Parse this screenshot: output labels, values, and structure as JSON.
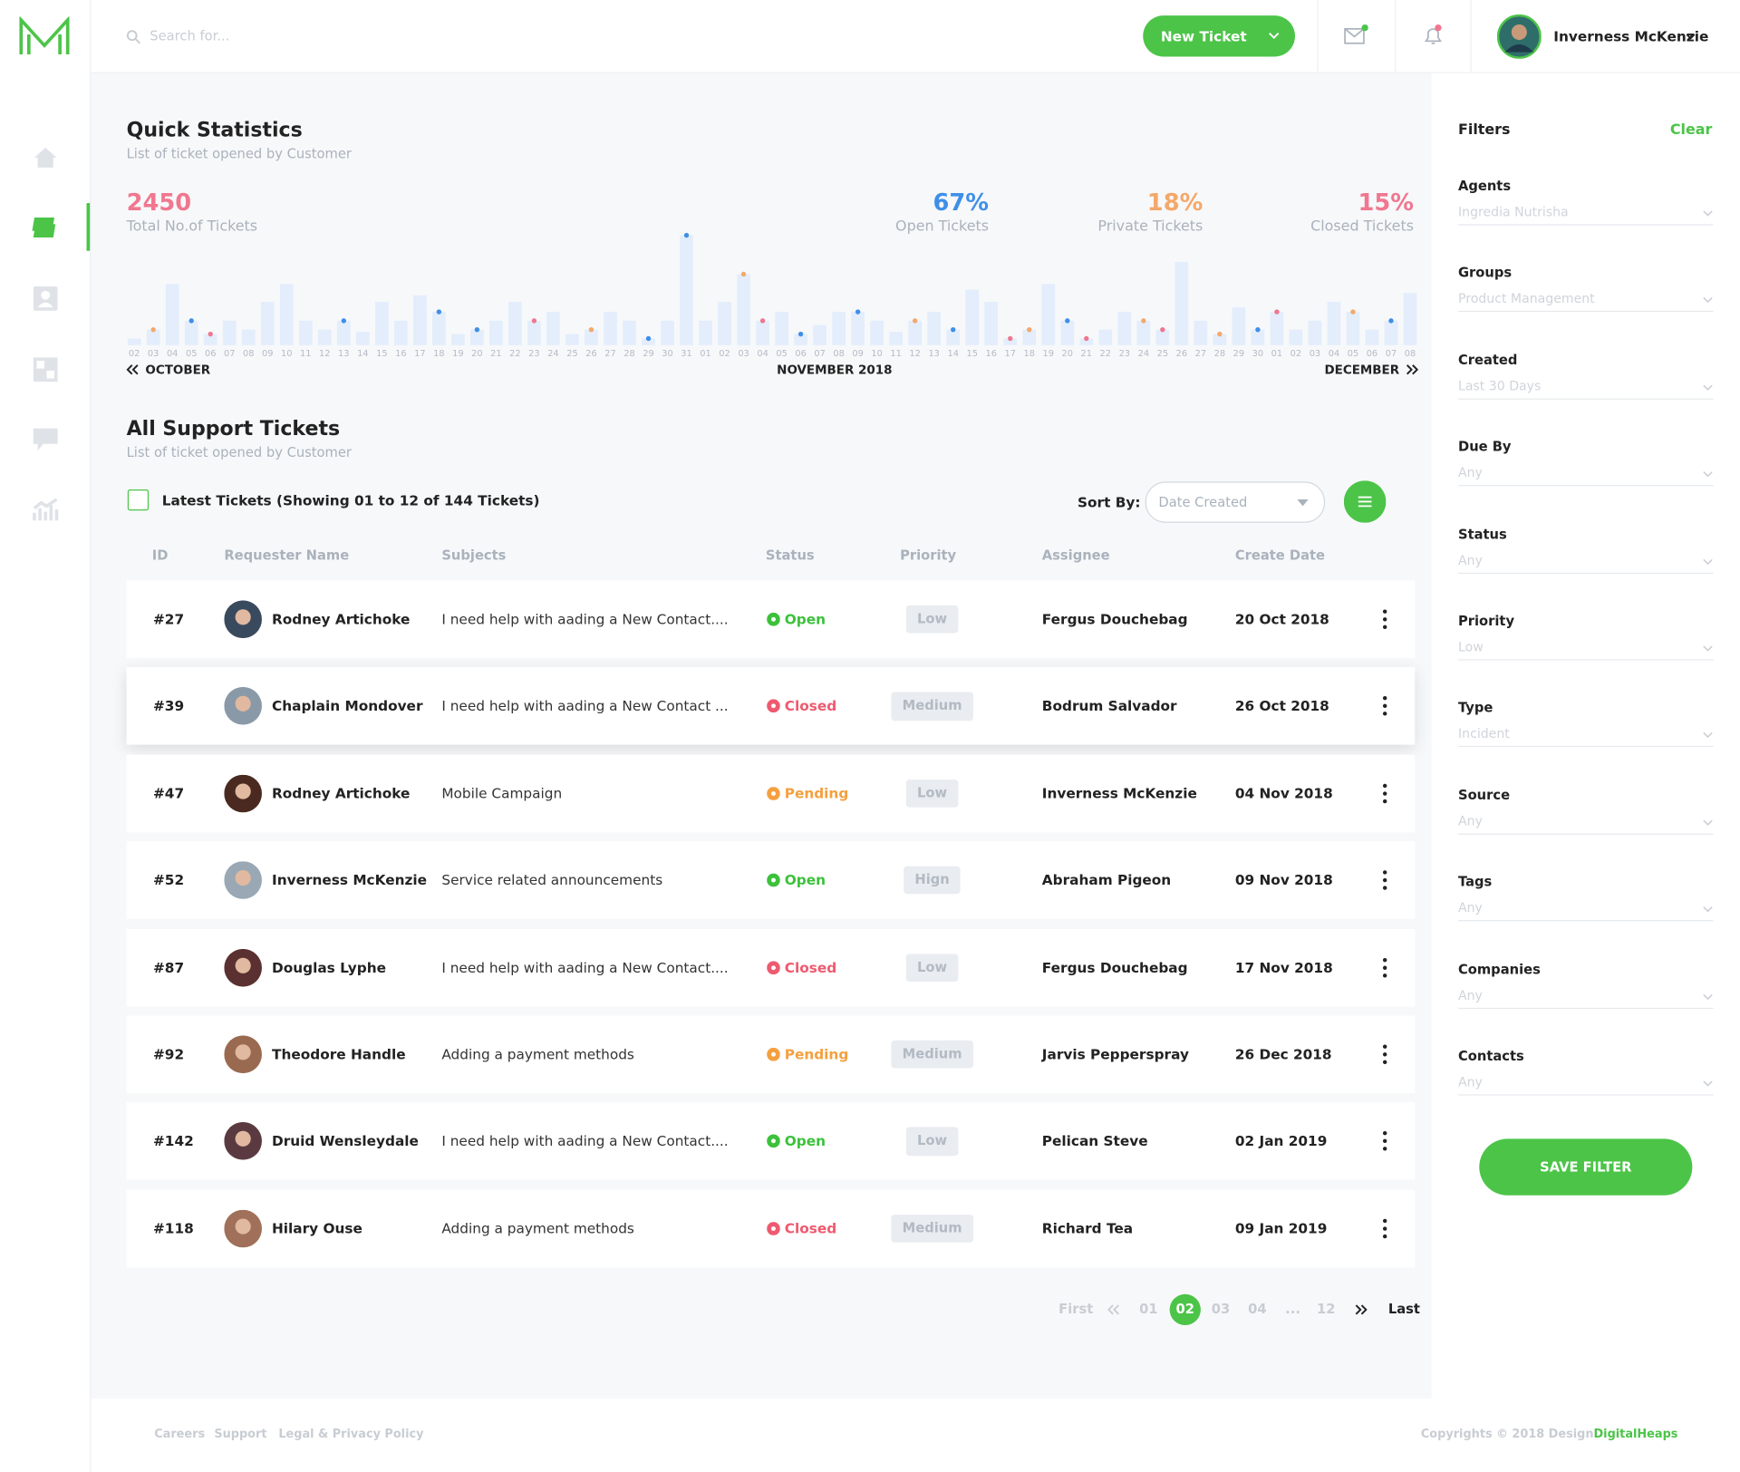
{
  "header": {
    "search_placeholder": "Search for...",
    "new_ticket": "New Ticket",
    "user_name": "Inverness McKenzie"
  },
  "stats": {
    "title": "Quick Statistics",
    "subtitle": "List of ticket opened by Customer",
    "total": {
      "value": "2450",
      "label": "Total No.of Tickets",
      "color": "#f0778f"
    },
    "metrics": [
      {
        "value": "67%",
        "label": "Open Tickets",
        "color": "#3f8fe8"
      },
      {
        "value": "18%",
        "label": "Private Tickets",
        "color": "#f4a86a"
      },
      {
        "value": "15%",
        "label": "Closed Tickets",
        "color": "#f0778f"
      }
    ],
    "chart": {
      "type": "bar",
      "color": "#e3edfc",
      "ylim": [
        0,
        100
      ],
      "categories": [
        "02",
        "03",
        "04",
        "05",
        "06",
        "07",
        "08",
        "09",
        "10",
        "11",
        "12",
        "13",
        "14",
        "15",
        "16",
        "17",
        "18",
        "19",
        "20",
        "21",
        "22",
        "23",
        "24",
        "25",
        "26",
        "27",
        "28",
        "29",
        "30",
        "31",
        "01",
        "02",
        "03",
        "04",
        "05",
        "06",
        "07",
        "08",
        "09",
        "10",
        "11",
        "12",
        "13",
        "14",
        "15",
        "16",
        "17",
        "18",
        "19",
        "20",
        "21",
        "22",
        "23",
        "24",
        "25",
        "26",
        "27",
        "28",
        "29",
        "30",
        "01",
        "02",
        "03",
        "04",
        "05",
        "06",
        "07",
        "08"
      ],
      "values": [
        6,
        14,
        55,
        22,
        10,
        22,
        14,
        39,
        55,
        22,
        14,
        22,
        12,
        39,
        22,
        45,
        30,
        10,
        14,
        22,
        39,
        22,
        30,
        10,
        14,
        30,
        22,
        6,
        22,
        99,
        22,
        39,
        64,
        22,
        30,
        10,
        18,
        30,
        30,
        22,
        12,
        22,
        30,
        14,
        50,
        39,
        6,
        14,
        55,
        22,
        6,
        14,
        30,
        22,
        14,
        75,
        22,
        10,
        34,
        14,
        30,
        14,
        22,
        39,
        30,
        14,
        22,
        47
      ],
      "markers": [
        null,
        "#f4a86a",
        null,
        "#3f8fe8",
        "#f0778f",
        null,
        null,
        null,
        null,
        null,
        null,
        "#3f8fe8",
        null,
        null,
        null,
        null,
        "#3f8fe8",
        null,
        "#3f8fe8",
        null,
        null,
        "#f0778f",
        null,
        null,
        "#f4a86a",
        null,
        null,
        "#3f8fe8",
        null,
        "#3f8fe8",
        null,
        null,
        "#f4a86a",
        "#f0778f",
        null,
        "#3f8fe8",
        null,
        null,
        "#3f8fe8",
        null,
        null,
        "#f4a86a",
        null,
        "#3f8fe8",
        null,
        null,
        "#f0778f",
        "#f4a86a",
        null,
        "#3f8fe8",
        "#f0778f",
        null,
        null,
        "#f4a86a",
        "#f0778f",
        null,
        null,
        "#f4a86a",
        null,
        "#3f8fe8",
        "#f0778f",
        null,
        null,
        null,
        "#f4a86a",
        null,
        "#3f8fe8",
        null
      ],
      "months": [
        "OCTOBER",
        "NOVEMBER 2018",
        "DECEMBER"
      ]
    }
  },
  "tickets": {
    "title": "All Support Tickets",
    "subtitle": "List of ticket opened by Customer",
    "showing": "Latest Tickets (Showing 01 to 12 of 144 Tickets)",
    "sort_label": "Sort By:",
    "sort_value": "Date Created",
    "columns": [
      "ID",
      "Requester Name",
      "Subjects",
      "Status",
      "Priority",
      "Assignee",
      "Create Date"
    ],
    "rows": [
      {
        "id": "#27",
        "name": "Rodney Artichoke",
        "subject": "I need help with aading a New Contact....",
        "status": "Open",
        "status_color": "#3cc13b",
        "priority": "Low",
        "assignee": "Fergus Douchebag",
        "date": "20 Oct 2018"
      },
      {
        "id": "#39",
        "name": "Chaplain Mondover",
        "subject": "I need help with aading a New Contact ...",
        "status": "Closed",
        "status_color": "#ee5a6f",
        "priority": "Medium",
        "assignee": "Bodrum Salvador",
        "date": "26 Oct 2018"
      },
      {
        "id": "#47",
        "name": "Rodney Artichoke",
        "subject": "Mobile Campaign",
        "status": "Pending",
        "status_color": "#f4a040",
        "priority": "Low",
        "assignee": "Inverness McKenzie",
        "date": "04 Nov 2018"
      },
      {
        "id": "#52",
        "name": "Inverness McKenzie",
        "subject": "Service related announcements",
        "status": "Open",
        "status_color": "#3cc13b",
        "priority": "Hign",
        "assignee": "Abraham Pigeon",
        "date": "09 Nov 2018"
      },
      {
        "id": "#87",
        "name": "Douglas Lyphe",
        "subject": "I need help with aading a New Contact....",
        "status": "Closed",
        "status_color": "#ee5a6f",
        "priority": "Low",
        "assignee": "Fergus Douchebag",
        "date": "17 Nov 2018"
      },
      {
        "id": "#92",
        "name": "Theodore Handle",
        "subject": "Adding a payment methods",
        "status": "Pending",
        "status_color": "#f4a040",
        "priority": "Medium",
        "assignee": "Jarvis Pepperspray",
        "date": "26 Dec 2018"
      },
      {
        "id": "#142",
        "name": "Druid Wensleydale",
        "subject": "I need help with aading a New Contact....",
        "status": "Open",
        "status_color": "#3cc13b",
        "priority": "Low",
        "assignee": "Pelican Steve",
        "date": "02 Jan 2019"
      },
      {
        "id": "#118",
        "name": "Hilary Ouse",
        "subject": "Adding a payment methods",
        "status": "Closed",
        "status_color": "#ee5a6f",
        "priority": "Medium",
        "assignee": "Richard Tea",
        "date": "09 Jan 2019"
      }
    ]
  },
  "pagination": {
    "first": "First",
    "pages": [
      "01",
      "02",
      "03",
      "04",
      "...",
      "12"
    ],
    "active": 1,
    "last": "Last"
  },
  "filters": {
    "title": "Filters",
    "clear": "Clear",
    "items": [
      {
        "label": "Agents",
        "value": "Ingredia Nutrisha"
      },
      {
        "label": "Groups",
        "value": "Product Management"
      },
      {
        "label": "Created",
        "value": "Last 30 Days"
      },
      {
        "label": "Due By",
        "value": "Any"
      },
      {
        "label": "Status",
        "value": "Any"
      },
      {
        "label": "Priority",
        "value": "Low"
      },
      {
        "label": "Type",
        "value": "Incident"
      },
      {
        "label": "Source",
        "value": "Any"
      },
      {
        "label": "Tags",
        "value": "Any"
      },
      {
        "label": "Companies",
        "value": "Any"
      },
      {
        "label": "Contacts",
        "value": "Any"
      }
    ],
    "button": "SAVE FILTER"
  },
  "footer": {
    "links": [
      "Careers",
      "Support",
      "Legal & Privacy Policy"
    ],
    "copyright": "Copyrights © 2018 Design",
    "brand": "DigitalHeaps"
  }
}
